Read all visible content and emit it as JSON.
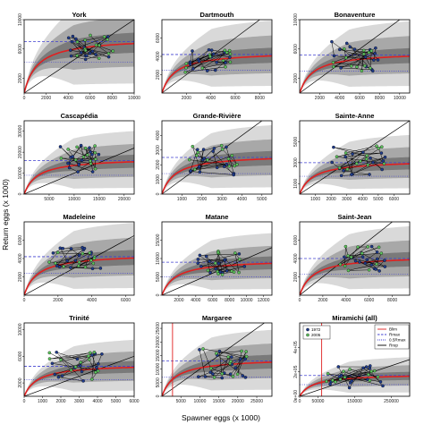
{
  "figure": {
    "xlabel": "Spawner eggs (x 1000)",
    "ylabel": "Return eggs (x 1000)"
  },
  "legend": {
    "points": [
      {
        "label": "1972",
        "color": "#1f3b8c"
      },
      {
        "label": "2005",
        "color": "#5ec45e"
      }
    ],
    "lines": [
      {
        "label": "Blim",
        "color": "#e02020",
        "style": "solid"
      },
      {
        "label": "Rmax",
        "color": "#4040d0",
        "style": "dashed"
      },
      {
        "label": "0.5Rmax",
        "color": "#4040d0",
        "style": "dotted"
      },
      {
        "label": "Rrep",
        "color": "#000000",
        "style": "solid"
      }
    ]
  },
  "colors": {
    "band_outer": "#d9d9d9",
    "band_mid": "#a8a8a8",
    "band_inner": "#7a7a7a",
    "curve": "#e02020",
    "replacement": "#000000",
    "rmax": "#4040d0",
    "early_point": "#1f3b8c",
    "late_point": "#5ec45e"
  },
  "chart_data": [
    {
      "type": "scatter",
      "title": "York",
      "xlim": [
        0,
        10000
      ],
      "ylim": [
        0,
        10000
      ],
      "xticks": [
        0,
        2000,
        4000,
        6000,
        8000,
        10000
      ],
      "yticks": [
        2000,
        6000,
        10000
      ],
      "rmax": 7000,
      "half_rmax": 4200,
      "blim": null,
      "cx": 6000,
      "cy": 6200,
      "sx": 1300,
      "sy": 1100,
      "n": 30
    },
    {
      "type": "scatter",
      "title": "Dartmouth",
      "xlim": [
        0,
        9000
      ],
      "ylim": [
        0,
        8000
      ],
      "xticks": [
        2000,
        4000,
        6000,
        8000
      ],
      "yticks": [
        2000,
        4000,
        6000
      ],
      "rmax": 4200,
      "half_rmax": 2500,
      "blim": null,
      "cx": 3800,
      "cy": 3500,
      "sx": 1200,
      "sy": 800,
      "n": 30
    },
    {
      "type": "scatter",
      "title": "Bonaventure",
      "xlim": [
        0,
        11000
      ],
      "ylim": [
        0,
        10000
      ],
      "xticks": [
        2000,
        4000,
        6000,
        8000,
        10000
      ],
      "yticks": [
        2000,
        6000,
        10000
      ],
      "rmax": 5200,
      "half_rmax": 3000,
      "blim": null,
      "cx": 5500,
      "cy": 5000,
      "sx": 1500,
      "sy": 1300,
      "n": 30
    },
    {
      "type": "scatter",
      "title": "Cascapédia",
      "xlim": [
        0,
        22000
      ],
      "ylim": [
        0,
        35000
      ],
      "xticks": [
        5000,
        10000,
        15000,
        20000
      ],
      "yticks": [
        0,
        10000,
        20000,
        30000
      ],
      "rmax": 16000,
      "half_rmax": 9000,
      "blim": null,
      "cx": 11000,
      "cy": 17000,
      "sx": 3000,
      "sy": 4000,
      "n": 30
    },
    {
      "type": "scatter",
      "title": "Grande-Rivière",
      "xlim": [
        0,
        5500
      ],
      "ylim": [
        0,
        5000
      ],
      "xticks": [
        1000,
        2000,
        3000,
        4000,
        5000
      ],
      "yticks": [
        0,
        1000,
        2000,
        3000,
        4000
      ],
      "rmax": 2500,
      "half_rmax": 1400,
      "blim": null,
      "cx": 2500,
      "cy": 2300,
      "sx": 800,
      "sy": 650,
      "n": 30
    },
    {
      "type": "scatter",
      "title": "Sainte-Anne",
      "xlim": [
        0,
        7000
      ],
      "ylim": [
        0,
        7000
      ],
      "xticks": [
        1000,
        2000,
        3000,
        4000,
        5000,
        6000
      ],
      "yticks": [
        1000,
        3000,
        5000
      ],
      "rmax": 3000,
      "half_rmax": 1700,
      "blim": null,
      "cx": 3800,
      "cy": 3200,
      "sx": 1100,
      "sy": 900,
      "n": 30
    },
    {
      "type": "scatter",
      "title": "Madeleine",
      "xlim": [
        0,
        6500
      ],
      "ylim": [
        0,
        8000
      ],
      "xticks": [
        0,
        2000,
        4000,
        6000
      ],
      "yticks": [
        2000,
        4000,
        6000
      ],
      "rmax": 4200,
      "half_rmax": 2400,
      "blim": null,
      "cx": 3000,
      "cy": 4000,
      "sx": 1000,
      "sy": 800,
      "n": 30
    },
    {
      "type": "scatter",
      "title": "Matane",
      "xlim": [
        0,
        13000
      ],
      "ylim": [
        0,
        20000
      ],
      "xticks": [
        2000,
        4000,
        6000,
        8000,
        10000,
        12000
      ],
      "yticks": [
        0,
        5000,
        10000,
        15000
      ],
      "rmax": 9000,
      "half_rmax": 5000,
      "blim": null,
      "cx": 7000,
      "cy": 9000,
      "sx": 1800,
      "sy": 2200,
      "n": 30
    },
    {
      "type": "scatter",
      "title": "Saint-Jean",
      "xlim": [
        0,
        9500
      ],
      "ylim": [
        0,
        8000
      ],
      "xticks": [
        0,
        2000,
        4000,
        6000,
        8000
      ],
      "yticks": [
        2000,
        4000,
        6000
      ],
      "rmax": 4000,
      "half_rmax": 2300,
      "blim": null,
      "cx": 5500,
      "cy": 4000,
      "sx": 1300,
      "sy": 900,
      "n": 30
    },
    {
      "type": "scatter",
      "title": "Trinité",
      "xlim": [
        0,
        6000
      ],
      "ylim": [
        0,
        11000
      ],
      "xticks": [
        0,
        1000,
        2000,
        3000,
        4000,
        5000,
        6000
      ],
      "yticks": [
        2000,
        6000,
        10000
      ],
      "rmax": 4500,
      "half_rmax": 2500,
      "blim": null,
      "cx": 2800,
      "cy": 4500,
      "sx": 900,
      "sy": 1400,
      "n": 30
    },
    {
      "type": "scatter",
      "title": "Margaree",
      "xlim": [
        0,
        29000
      ],
      "ylim": [
        0,
        27000
      ],
      "xticks": [
        5000,
        10000,
        15000,
        20000,
        25000
      ],
      "yticks": [
        0,
        5000,
        10000,
        15000,
        20000,
        25000
      ],
      "rmax": 13000,
      "half_rmax": 7000,
      "blim": 2800,
      "cx": 16000,
      "cy": 12000,
      "sx": 5000,
      "sy": 3500,
      "n": 30
    },
    {
      "type": "scatter",
      "title": "Miramichi (all)",
      "xlim": [
        0,
        300000
      ],
      "ylim": [
        0,
        600000
      ],
      "xticks": [
        0,
        50000,
        150000,
        250000
      ],
      "ytick_labels": [
        "0e+00",
        "2e+05",
        "4e+05"
      ],
      "yticks": [
        0,
        200000,
        400000
      ],
      "rmax": 170000,
      "half_rmax": 95000,
      "blim": 60000,
      "cx": 150000,
      "cy": 160000,
      "sx": 50000,
      "sy": 60000,
      "n": 30
    }
  ]
}
